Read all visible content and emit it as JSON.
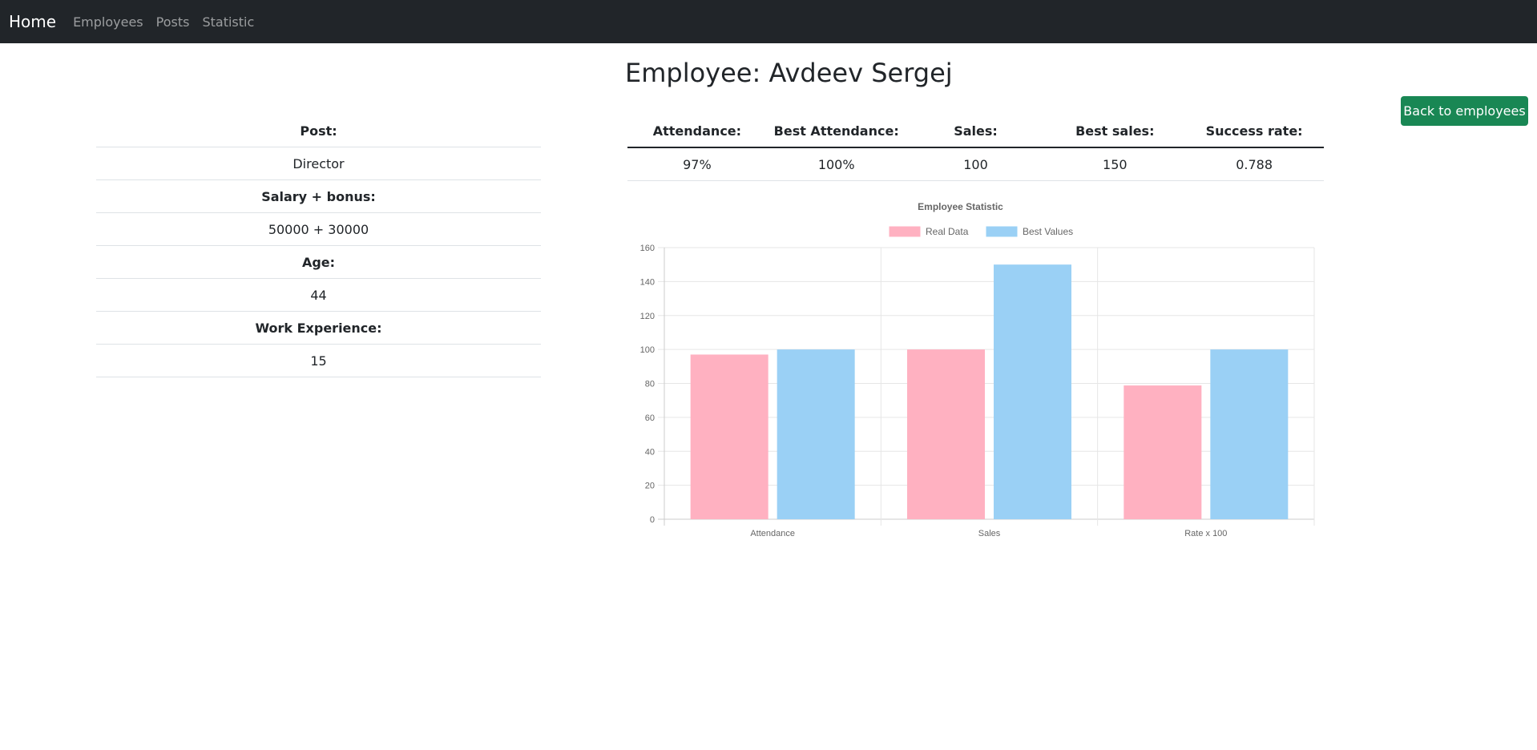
{
  "navbar": {
    "brand": "Home",
    "links": [
      "Employees",
      "Posts",
      "Statistic"
    ]
  },
  "page": {
    "title": "Employee: Avdeev Sergej",
    "back_button": "Back to employees"
  },
  "info": [
    {
      "label": "Post:",
      "value": "Director"
    },
    {
      "label": "Salary + bonus:",
      "value": "50000 + 30000"
    },
    {
      "label": "Age:",
      "value": "44"
    },
    {
      "label": "Work Experience:",
      "value": "15"
    }
  ],
  "stats": {
    "headers": [
      "Attendance:",
      "Best Attendance:",
      "Sales:",
      "Best sales:",
      "Success rate:"
    ],
    "values": [
      "97%",
      "100%",
      "100",
      "150",
      "0.788"
    ]
  },
  "colors": {
    "navbar": "#212529",
    "button": "#198754",
    "real": "#ffb1c1",
    "best": "#9ad0f5"
  },
  "chart_data": {
    "type": "bar",
    "title": "Employee Statistic",
    "categories": [
      "Attendance",
      "Sales",
      "Rate x 100"
    ],
    "series": [
      {
        "name": "Real Data",
        "values": [
          97,
          100,
          78.8
        ],
        "color": "#ffb1c1"
      },
      {
        "name": "Best Values",
        "values": [
          100,
          150,
          100
        ],
        "color": "#9ad0f5"
      }
    ],
    "ylim": [
      0,
      160
    ],
    "yticks": [
      0,
      20,
      40,
      60,
      80,
      100,
      120,
      140,
      160
    ],
    "grid": true,
    "legend": "top"
  }
}
